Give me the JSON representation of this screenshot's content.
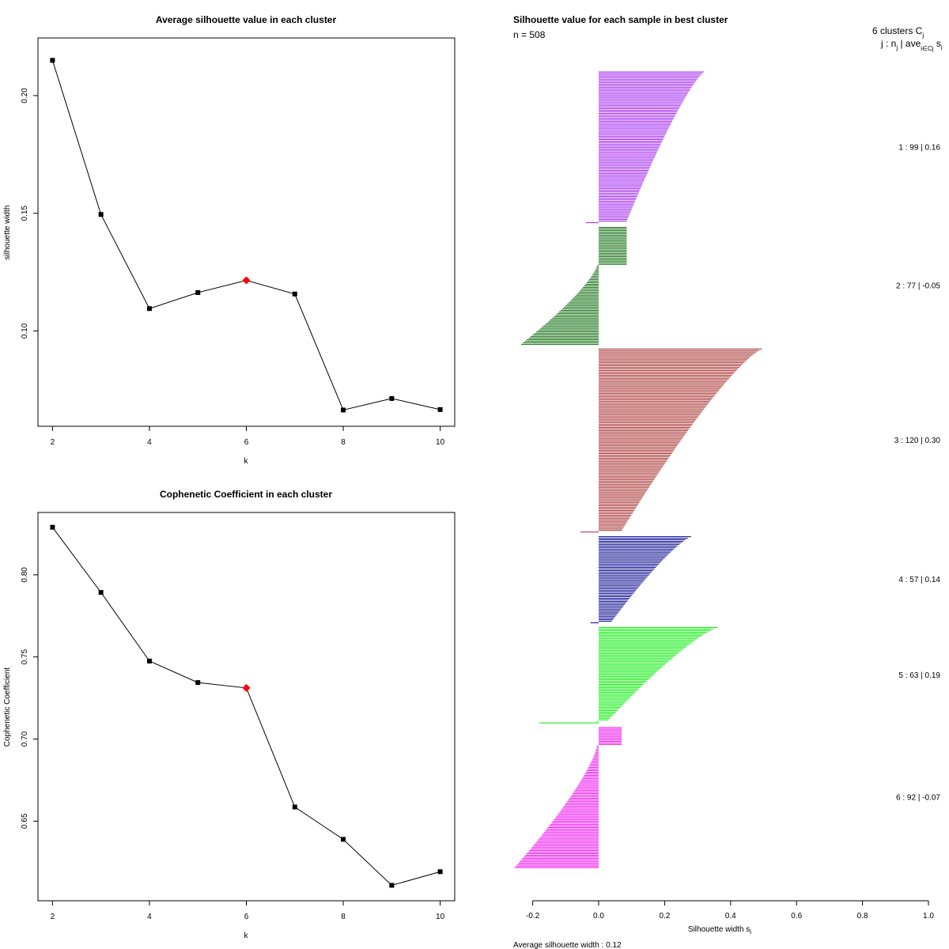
{
  "chart_data": [
    {
      "type": "line",
      "title": "Average silhouette value in each cluster",
      "xlabel": "k",
      "ylabel": "silhouette width",
      "x": [
        2,
        3,
        4,
        5,
        6,
        7,
        8,
        9,
        10
      ],
      "y": [
        0.215,
        0.1495,
        0.1095,
        0.1163,
        0.1215,
        0.1157,
        0.0664,
        0.0713,
        0.0666
      ],
      "highlight_k": 6,
      "xticks": [
        "2",
        "4",
        "6",
        "8",
        "10"
      ],
      "yticks": [
        "0.10",
        "0.15",
        "0.20"
      ],
      "xlim": [
        1.7,
        10.3
      ],
      "ylim": [
        0.0595,
        0.2245
      ],
      "colors": {
        "line": "#000000",
        "point": "#000000",
        "highlight": "#ff0000"
      }
    },
    {
      "type": "line",
      "title": "Cophenetic Coefficient in each cluster",
      "xlabel": "k",
      "ylabel": "Cophenetic Coefficient",
      "x": [
        2,
        3,
        4,
        5,
        6,
        7,
        8,
        9,
        10
      ],
      "y": [
        0.829,
        0.7893,
        0.7475,
        0.7344,
        0.7311,
        0.6586,
        0.6389,
        0.6109,
        0.6192
      ],
      "highlight_k": 6,
      "xticks": [
        "2",
        "4",
        "6",
        "8",
        "10"
      ],
      "yticks": [
        "0.65",
        "0.70",
        "0.75",
        "0.80"
      ],
      "xlim": [
        1.7,
        10.3
      ],
      "ylim": [
        0.6015,
        0.838
      ],
      "colors": {
        "line": "#000000",
        "point": "#000000",
        "highlight": "#ff0000"
      }
    },
    {
      "type": "bar",
      "orientation": "horizontal",
      "title": "Silhouette value for each sample in best cluster",
      "n_label": "n = 508",
      "header_line1": "6  clusters  C",
      "header_line1_sub": "j",
      "header_line2": "j :  n",
      "header_line2_sub": "j",
      "header_line2_tail": " | ave",
      "header_line2_sub2": "i∈Cj",
      "header_line2_end": " s",
      "header_line2_end_sub": "i",
      "xlabel": "Silhouette width s",
      "xlabel_sub": "i",
      "footer": "Average silhouette width :  0.12",
      "xticks": [
        "-0.2",
        "0.0",
        "0.2",
        "0.4",
        "0.6",
        "0.8",
        "1.0"
      ],
      "xlim": [
        -0.25,
        1.0
      ],
      "clusters": [
        {
          "id": 1,
          "n": 99,
          "avg": 0.16,
          "max": 0.32,
          "min": -0.04,
          "n_neg": 1,
          "pos_start": 0.085,
          "color": "#a020f0",
          "label": "1 :   99  |  0.16"
        },
        {
          "id": 2,
          "n": 77,
          "avg": -0.05,
          "max": 0.085,
          "min": -0.235,
          "n_neg": 52,
          "pos_start": 0.085,
          "color": "#006400",
          "label": "2 :   77  |  -0.05"
        },
        {
          "id": 3,
          "n": 120,
          "avg": 0.3,
          "max": 0.495,
          "min": -0.055,
          "n_neg": 1,
          "pos_start": 0.07,
          "color": "#a52a2a",
          "label": "3 :   120  |  0.30"
        },
        {
          "id": 4,
          "n": 57,
          "avg": 0.14,
          "max": 0.28,
          "min": -0.025,
          "n_neg": 1,
          "pos_start": 0.04,
          "color": "#00008b",
          "label": "4 :   57  |  0.14"
        },
        {
          "id": 5,
          "n": 63,
          "avg": 0.19,
          "max": 0.36,
          "min": -0.18,
          "n_neg": 2,
          "pos_start": 0.03,
          "color": "#00ee00",
          "label": "5 :   63  |  0.19"
        },
        {
          "id": 6,
          "n": 92,
          "avg": -0.07,
          "max": 0.07,
          "min": -0.255,
          "n_neg": 80,
          "pos_start": 0.07,
          "color": "#ee00ee",
          "label": "6 :   92  |  -0.07"
        }
      ]
    }
  ]
}
